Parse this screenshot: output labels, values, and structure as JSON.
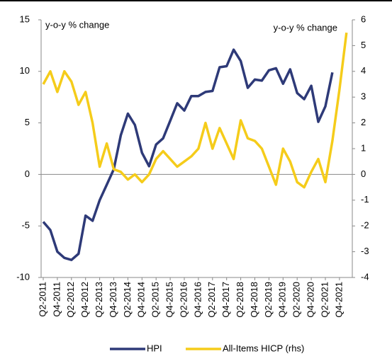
{
  "chart_data": {
    "type": "line",
    "annotations": [
      "y-o-y % change",
      "y-o-y % change"
    ],
    "categories": [
      "Q2-2011",
      null,
      "Q4-2011",
      null,
      "Q2-2012",
      null,
      "Q4-2012",
      null,
      "Q2-2013",
      null,
      "Q4-2013",
      null,
      "Q2-2014",
      null,
      "Q4-2014",
      null,
      "Q2-2015",
      null,
      "Q4-2015",
      null,
      "Q2-2016",
      null,
      "Q4-2016",
      null,
      "Q2-2017",
      null,
      "Q4-2017",
      null,
      "Q2-2018",
      null,
      "Q4-2018",
      null,
      "Q2-2019",
      null,
      "Q4-2019",
      null,
      "Q2-2020",
      null,
      "Q4-2020",
      null,
      "Q2-2021",
      null,
      "Q4-2021",
      null
    ],
    "series": [
      {
        "name": "HPI",
        "color": "#2e3a78",
        "values": [
          -4.6,
          -5.4,
          -7.5,
          -8.1,
          -8.3,
          -7.7,
          -4.0,
          -4.5,
          -2.5,
          -1.0,
          0.5,
          3.8,
          5.9,
          4.8,
          2.1,
          0.8,
          2.9,
          3.5,
          5.2,
          6.9,
          6.2,
          7.6,
          7.6,
          8.0,
          8.1,
          10.4,
          10.5,
          12.1,
          11.0,
          8.4,
          9.2,
          9.1,
          10.1,
          10.3,
          8.8,
          10.2,
          7.9,
          7.3,
          8.6,
          5.1,
          6.6,
          9.9,
          null,
          null
        ]
      },
      {
        "name": "All-Items HICP (rhs)",
        "color": "#f5cc1a",
        "axis": "y2",
        "values": [
          3.5,
          4.0,
          3.2,
          4.0,
          3.6,
          2.7,
          3.2,
          2.0,
          0.3,
          1.2,
          0.2,
          0.1,
          -0.2,
          0.0,
          -0.3,
          0.0,
          0.6,
          0.9,
          0.6,
          0.3,
          0.5,
          0.7,
          1.0,
          2.0,
          1.0,
          1.8,
          1.2,
          0.6,
          2.1,
          1.4,
          1.3,
          1.0,
          0.3,
          -0.4,
          1.0,
          0.5,
          -0.3,
          -0.5,
          0.1,
          0.6,
          -0.3,
          1.3,
          3.3,
          5.5
        ]
      }
    ],
    "ylim": [
      -10,
      15
    ],
    "yticks": [
      15,
      10,
      5,
      0,
      -5,
      -10
    ],
    "y2lim": [
      -4,
      6
    ],
    "y2ticks": [
      6,
      5,
      4,
      3,
      2,
      1,
      0,
      -1,
      -2,
      -3,
      -4
    ],
    "grid": false
  }
}
